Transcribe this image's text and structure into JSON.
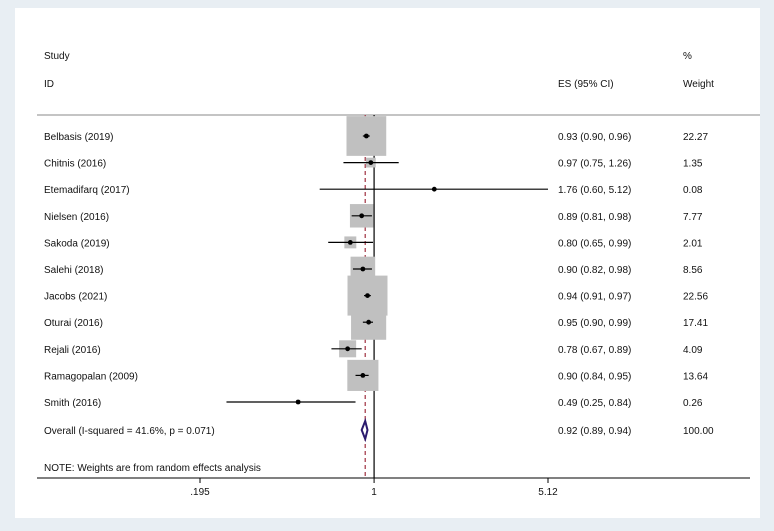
{
  "header": {
    "study": "Study",
    "id": "ID",
    "es": "ES (95% CI)",
    "pct": "%",
    "weight": "Weight"
  },
  "note": "NOTE: Weights are from random effects analysis",
  "colors": {
    "background": "#e8eef3",
    "plot_bg": "#ffffff",
    "weight_box": "#c0c0c0",
    "null_line": "#000000",
    "overall_line": "#a03040",
    "diamond": "#2b1a6e"
  },
  "chart_data": {
    "type": "forest",
    "scale": "log",
    "xlim": [
      0.195,
      5.12
    ],
    "xticks": [
      {
        "value": 0.195,
        "label": ".195"
      },
      {
        "value": 1,
        "label": "1"
      },
      {
        "value": 5.12,
        "label": "5.12"
      }
    ],
    "null_value": 1,
    "studies": [
      {
        "label": "Belbasis (2019)",
        "es": 0.93,
        "lo": 0.9,
        "hi": 0.96,
        "es_text": "0.93 (0.90, 0.96)",
        "weight": 22.27,
        "weight_text": "22.27"
      },
      {
        "label": "Chitnis (2016)",
        "es": 0.97,
        "lo": 0.75,
        "hi": 1.26,
        "es_text": "0.97 (0.75, 1.26)",
        "weight": 1.35,
        "weight_text": "1.35"
      },
      {
        "label": "Etemadifarq (2017)",
        "es": 1.76,
        "lo": 0.6,
        "hi": 5.12,
        "es_text": "1.76 (0.60, 5.12)",
        "weight": 0.08,
        "weight_text": "0.08"
      },
      {
        "label": "Nielsen (2016)",
        "es": 0.89,
        "lo": 0.81,
        "hi": 0.98,
        "es_text": "0.89 (0.81, 0.98)",
        "weight": 7.77,
        "weight_text": "7.77"
      },
      {
        "label": "Sakoda (2019)",
        "es": 0.8,
        "lo": 0.65,
        "hi": 0.99,
        "es_text": "0.80 (0.65, 0.99)",
        "weight": 2.01,
        "weight_text": "2.01"
      },
      {
        "label": "Salehi  (2018)",
        "es": 0.9,
        "lo": 0.82,
        "hi": 0.98,
        "es_text": "0.90 (0.82, 0.98)",
        "weight": 8.56,
        "weight_text": "8.56"
      },
      {
        "label": "Jacobs  (2021)",
        "es": 0.94,
        "lo": 0.91,
        "hi": 0.97,
        "es_text": "0.94 (0.91, 0.97)",
        "weight": 22.56,
        "weight_text": "22.56"
      },
      {
        "label": "Oturai  (2016)",
        "es": 0.95,
        "lo": 0.9,
        "hi": 0.99,
        "es_text": "0.95 (0.90, 0.99)",
        "weight": 17.41,
        "weight_text": "17.41"
      },
      {
        "label": "Rejali (2016)",
        "es": 0.78,
        "lo": 0.67,
        "hi": 0.89,
        "es_text": "0.78 (0.67, 0.89)",
        "weight": 4.09,
        "weight_text": "4.09"
      },
      {
        "label": "Ramagopalan (2009)",
        "es": 0.9,
        "lo": 0.84,
        "hi": 0.95,
        "es_text": "0.90 (0.84, 0.95)",
        "weight": 13.64,
        "weight_text": "13.64"
      },
      {
        "label": "Smith (2016)",
        "es": 0.49,
        "lo": 0.25,
        "hi": 0.84,
        "es_text": "0.49 (0.25, 0.84)",
        "weight": 0.26,
        "weight_text": "0.26"
      }
    ],
    "overall": {
      "label": "Overall  (I-squared = 41.6%, p = 0.071)",
      "es": 0.92,
      "lo": 0.89,
      "hi": 0.94,
      "es_text": "0.92 (0.89, 0.94)",
      "weight_text": "100.00"
    }
  }
}
